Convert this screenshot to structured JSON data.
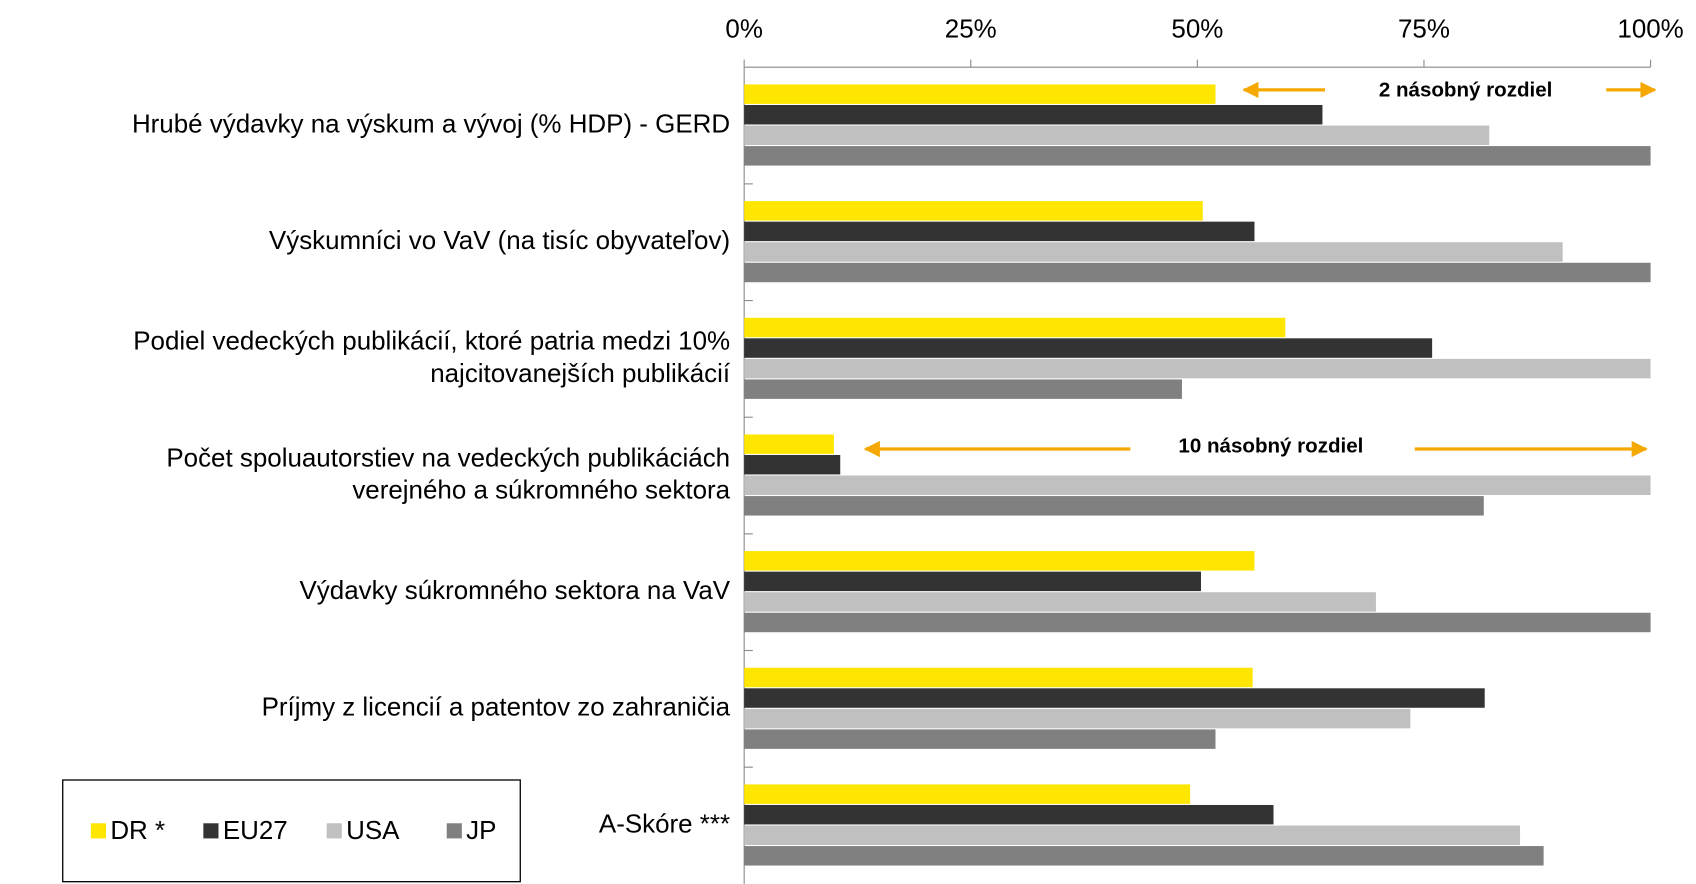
{
  "chart_data": {
    "type": "hbar",
    "categories": [
      "Hrubé výdavky na výskum a vývoj (% HDP)  - GERD",
      "Výskumníci vo VaV  (na tisíc obyvateľov)",
      "Podiel vedeckých publikácií, ktoré patria medzi 10%\nnajcitovanejších publikácií",
      "Počet spoluautorstiev na vedeckých publikáciách\nverejného a súkromného sektora",
      "Výdavky súkromného sektora na VaV",
      "Príjmy z licencií a patentov zo zahraničia",
      "A-Skóre ***"
    ],
    "series": [
      {
        "name": "DR *",
        "color": "#ffe600",
        "values": [
          52.0,
          50.6,
          59.7,
          9.9,
          56.3,
          56.1,
          49.2
        ]
      },
      {
        "name": "EU27",
        "color": "#333333",
        "values": [
          63.8,
          56.3,
          75.9,
          10.6,
          50.4,
          81.7,
          58.4
        ]
      },
      {
        "name": "USA",
        "color": "#c0c0c0",
        "values": [
          82.2,
          90.3,
          100,
          100,
          69.7,
          73.5,
          85.6
        ]
      },
      {
        "name": "JP",
        "color": "#808080",
        "values": [
          100,
          100,
          48.3,
          81.6,
          100,
          52.0,
          88.2
        ]
      }
    ],
    "xlim": [
      0,
      100
    ],
    "xticks": [
      {
        "value": 0,
        "label": "0%"
      },
      {
        "value": 25,
        "label": "25%"
      },
      {
        "value": 50,
        "label": "50%"
      },
      {
        "value": 75,
        "label": "75%"
      },
      {
        "value": 100,
        "label": "100%"
      }
    ],
    "annotations": [
      "2 násobný  rozdiel",
      "10 násobný  rozdiel"
    ],
    "annotation_color": "#f5a800",
    "legend": "bottom-left"
  }
}
